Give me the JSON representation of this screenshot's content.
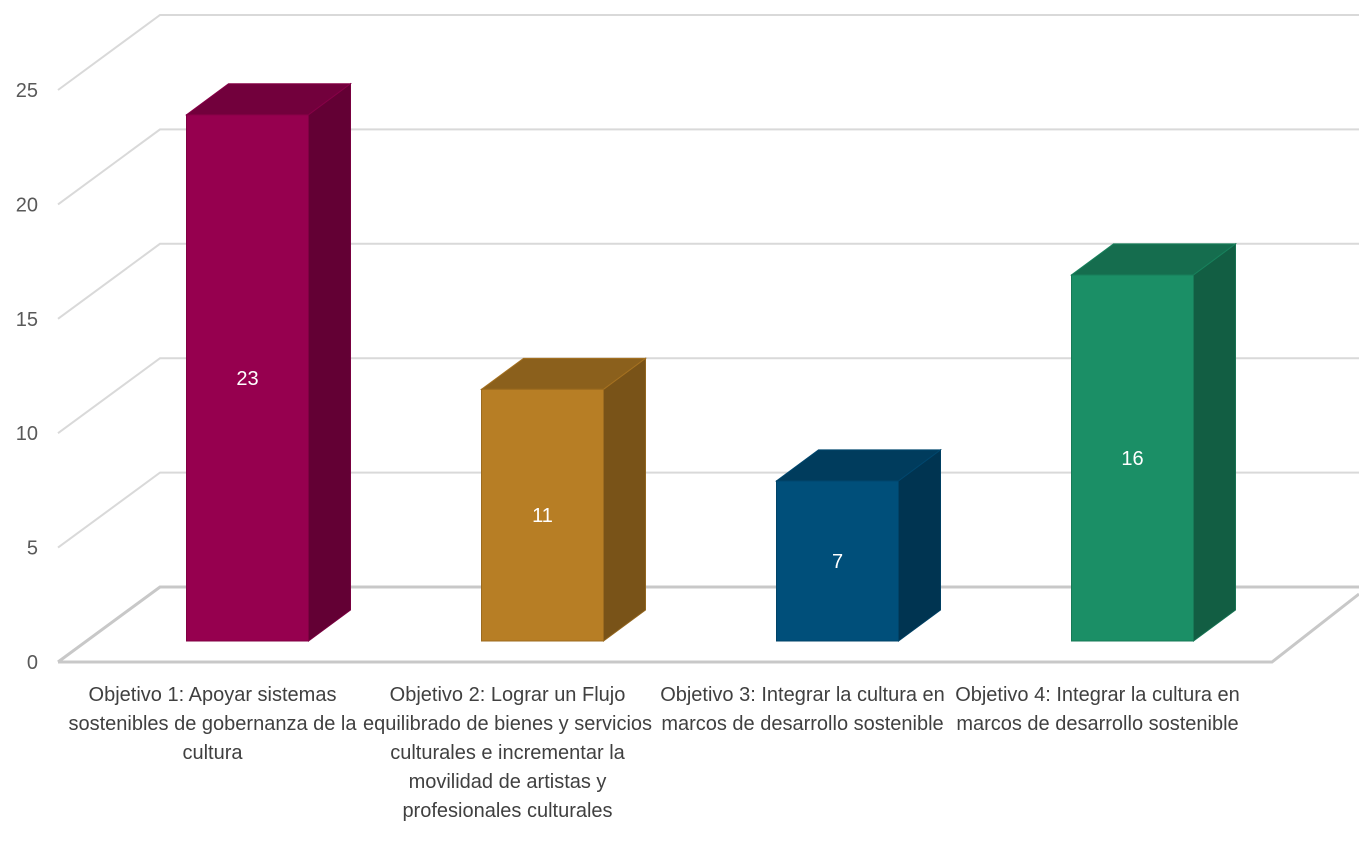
{
  "chart_data": {
    "type": "bar",
    "title": "",
    "xlabel": "",
    "ylabel": "",
    "ylim": [
      0,
      25
    ],
    "ytick_step": 5,
    "grid": true,
    "legend": false,
    "style": "3d-column",
    "categories": [
      "Objetivo 1: Apoyar sistemas sostenibles de gobernanza de la cultura",
      "Objetivo 2: Lograr un Flujo equilibrado de bienes y servicios culturales e incrementar la movilidad de artistas y profesionales culturales",
      "Objetivo 3: Integrar la cultura en marcos de desarrollo sostenible",
      "Objetivo 4: Integrar la cultura en marcos de desarrollo sostenible"
    ],
    "values": [
      23,
      11,
      7,
      16
    ],
    "colors": [
      "#96004f",
      "#b77e25",
      "#004f7a",
      "#1b8f66"
    ]
  }
}
